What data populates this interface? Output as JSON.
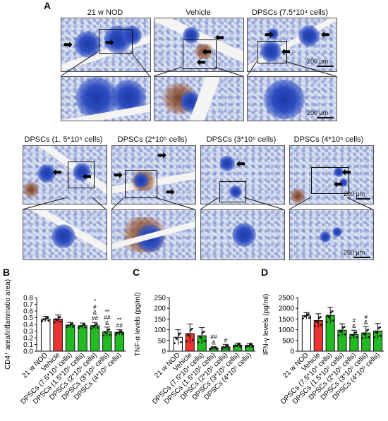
{
  "panel_labels": {
    "a": "A",
    "b": "B",
    "c": "C",
    "d": "D"
  },
  "histology": {
    "top_titles": [
      "21 w NOD",
      "Vehicle",
      "DPSCs (7.5*10⁴ cells)"
    ],
    "bottom_titles": [
      "DPSCs (1. 5*10⁵ cells)",
      "DPSCs (2*10⁵ cells)",
      "DPSCs (3*10⁵ cells)",
      "DPSCs (4*10⁵ cells)"
    ],
    "scale_label": "200 μm",
    "arrow_glyph_right": "➡",
    "arrow_glyph_left": "⬅"
  },
  "chart_data": [
    {
      "type": "bar",
      "panel": "B",
      "ylabel": "CD4⁺ area/inflammatio area)",
      "ylim": [
        0,
        0.8
      ],
      "yticks": [
        "0.0",
        "0.1",
        "0.2",
        "0.3",
        "0.4",
        "0.5",
        "0.6",
        "0.7",
        "0.8"
      ],
      "categories": [
        "21 w NOD",
        "Vehicle",
        "DPSCs (7.5*10⁴ cells)",
        "DPSCs (1.5*10⁵ cells)",
        "DPSCs (2*10⁵ cells)",
        "DPSCs (3*10⁵ cells)",
        "DPSCs (4*10⁵ cells)"
      ],
      "values": [
        0.48,
        0.48,
        0.39,
        0.38,
        0.38,
        0.29,
        0.28
      ],
      "errors": [
        0.04,
        0.06,
        0.04,
        0.04,
        0.05,
        0.07,
        0.04
      ],
      "colors": [
        "#ffffff",
        "#ee3333",
        "#22bb22",
        "#22bb22",
        "#22bb22",
        "#22bb22",
        "#22bb22"
      ],
      "annotations": [
        "",
        "",
        "",
        "",
        "*\n#\n&\n##",
        "**\n##\n&",
        "**\n##"
      ]
    },
    {
      "type": "bar",
      "panel": "C",
      "ylabel": "TNF-α levels (pg/ml)",
      "ylim": [
        0,
        250
      ],
      "yticks": [
        "0",
        "50",
        "100",
        "150",
        "200",
        "250"
      ],
      "categories": [
        "21 w NOD",
        "Vehicle",
        "DPSCs (7.5*10⁴ cells)",
        "DPSCs (1.5*10⁵ cells)",
        "DPSCs (2*10⁵ cells)",
        "DPSCs (3*10⁵ cells)",
        "DPSCs (4*10⁵ cells)"
      ],
      "values": [
        65,
        82,
        72,
        15,
        20,
        28,
        27
      ],
      "errors": [
        35,
        45,
        38,
        6,
        12,
        10,
        10
      ],
      "colors": [
        "#ffffff",
        "#ee3333",
        "#22bb22",
        "#22bb22",
        "#22bb22",
        "#22bb22",
        "#22bb22"
      ],
      "annotations": [
        "",
        "",
        "",
        "##\n&",
        "#",
        "",
        ""
      ]
    },
    {
      "type": "bar",
      "panel": "D",
      "ylabel": "IFN-γ levels (pg/ml)",
      "ylim": [
        0,
        2500
      ],
      "yticks": [
        "0",
        "500",
        "1000",
        "1500",
        "2000",
        "2500"
      ],
      "categories": [
        "21 w NOD",
        "Vehicle",
        "DPSCs (7.5*10⁴ cells)",
        "DPSCs (1.5*10⁵ cells)",
        "DPSCs (2*10⁵ cells)",
        "DPSCs (3*10⁵ cells)",
        "DPSCs (4*10⁵ cells)"
      ],
      "values": [
        1650,
        1430,
        1670,
        980,
        780,
        850,
        940
      ],
      "errors": [
        150,
        320,
        380,
        300,
        200,
        300,
        350
      ],
      "colors": [
        "#ffffff",
        "#ee3333",
        "#22bb22",
        "#22bb22",
        "#22bb22",
        "#22bb22",
        "#22bb22"
      ],
      "annotations": [
        "",
        "",
        "",
        "",
        "#\n&",
        "#\n&",
        ""
      ]
    }
  ]
}
